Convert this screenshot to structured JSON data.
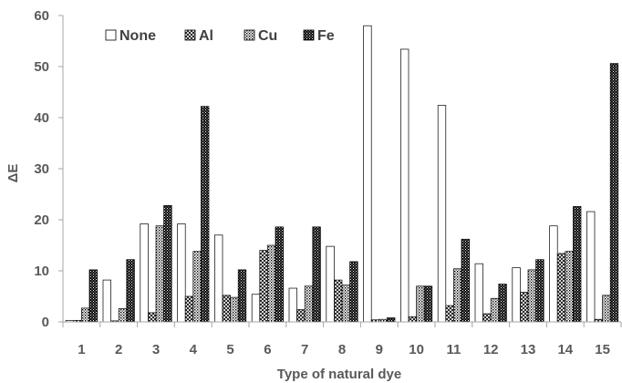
{
  "chart_data": {
    "type": "bar",
    "categories": [
      "1",
      "2",
      "3",
      "4",
      "5",
      "6",
      "7",
      "8",
      "9",
      "10",
      "11",
      "12",
      "13",
      "14",
      "15"
    ],
    "series": [
      {
        "name": "None",
        "pattern": "white",
        "values": [
          0.3,
          8.2,
          19.2,
          19.2,
          17.0,
          5.4,
          6.6,
          14.8,
          58.0,
          53.4,
          42.4,
          11.4,
          10.6,
          18.8,
          21.6
        ]
      },
      {
        "name": "Al",
        "pattern": "cross",
        "values": [
          0.3,
          0.2,
          1.8,
          5.0,
          5.2,
          14.0,
          2.4,
          8.2,
          0.4,
          1.0,
          3.2,
          1.6,
          5.8,
          13.4,
          0.5
        ]
      },
      {
        "name": "Cu",
        "pattern": "dots",
        "values": [
          2.7,
          2.6,
          18.8,
          13.8,
          4.8,
          15.0,
          7.0,
          7.2,
          0.5,
          7.0,
          10.4,
          4.6,
          10.2,
          13.8,
          5.2
        ]
      },
      {
        "name": "Fe",
        "pattern": "dense",
        "values": [
          10.2,
          12.2,
          22.8,
          42.2,
          10.2,
          18.6,
          18.6,
          11.8,
          0.8,
          7.0,
          16.2,
          7.4,
          12.2,
          22.6,
          50.6
        ]
      }
    ],
    "xlabel": "Type of  natural dye",
    "ylabel": "ΔE",
    "ylim": [
      0,
      60
    ],
    "yticks": [
      "0",
      "10",
      "20",
      "30",
      "40",
      "50",
      "60"
    ],
    "grid": false,
    "legend_position": "top-left"
  },
  "colors": {
    "axis": "#a6a6a6",
    "bar_outline": "#000000",
    "text": "#595959"
  }
}
